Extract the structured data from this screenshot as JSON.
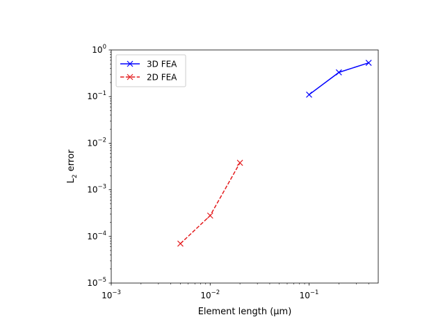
{
  "chart_data": {
    "type": "line",
    "xscale": "log",
    "yscale": "log",
    "xlabel": "Element length (μm)",
    "ylabel_main": "L",
    "ylabel_sub": "2",
    "ylabel_rest": " error",
    "xlim": [
      0.001,
      0.5
    ],
    "ylim": [
      1e-05,
      1
    ],
    "x_ticks": [
      {
        "value": 0.001,
        "base": "10",
        "exp": "−3"
      },
      {
        "value": 0.01,
        "base": "10",
        "exp": "−2"
      },
      {
        "value": 0.1,
        "base": "10",
        "exp": "−1"
      }
    ],
    "y_ticks": [
      {
        "value": 1e-05,
        "base": "10",
        "exp": "−5"
      },
      {
        "value": 0.0001,
        "base": "10",
        "exp": "−4"
      },
      {
        "value": 0.001,
        "base": "10",
        "exp": "−3"
      },
      {
        "value": 0.01,
        "base": "10",
        "exp": "−2"
      },
      {
        "value": 0.1,
        "base": "10",
        "exp": "−1"
      },
      {
        "value": 1,
        "base": "10",
        "exp": "0"
      }
    ],
    "grid": false,
    "legend_position": "top-left",
    "series": [
      {
        "name": "3D FEA",
        "color": "#0000ff",
        "linestyle": "solid",
        "marker": "x",
        "x": [
          0.1,
          0.2,
          0.4
        ],
        "y": [
          0.11,
          0.33,
          0.53
        ]
      },
      {
        "name": "2D FEA",
        "color": "#e41a1c",
        "linestyle": "dashed",
        "marker": "x",
        "x": [
          0.005,
          0.01,
          0.02
        ],
        "y": [
          7e-05,
          0.00028,
          0.0038
        ]
      }
    ]
  }
}
